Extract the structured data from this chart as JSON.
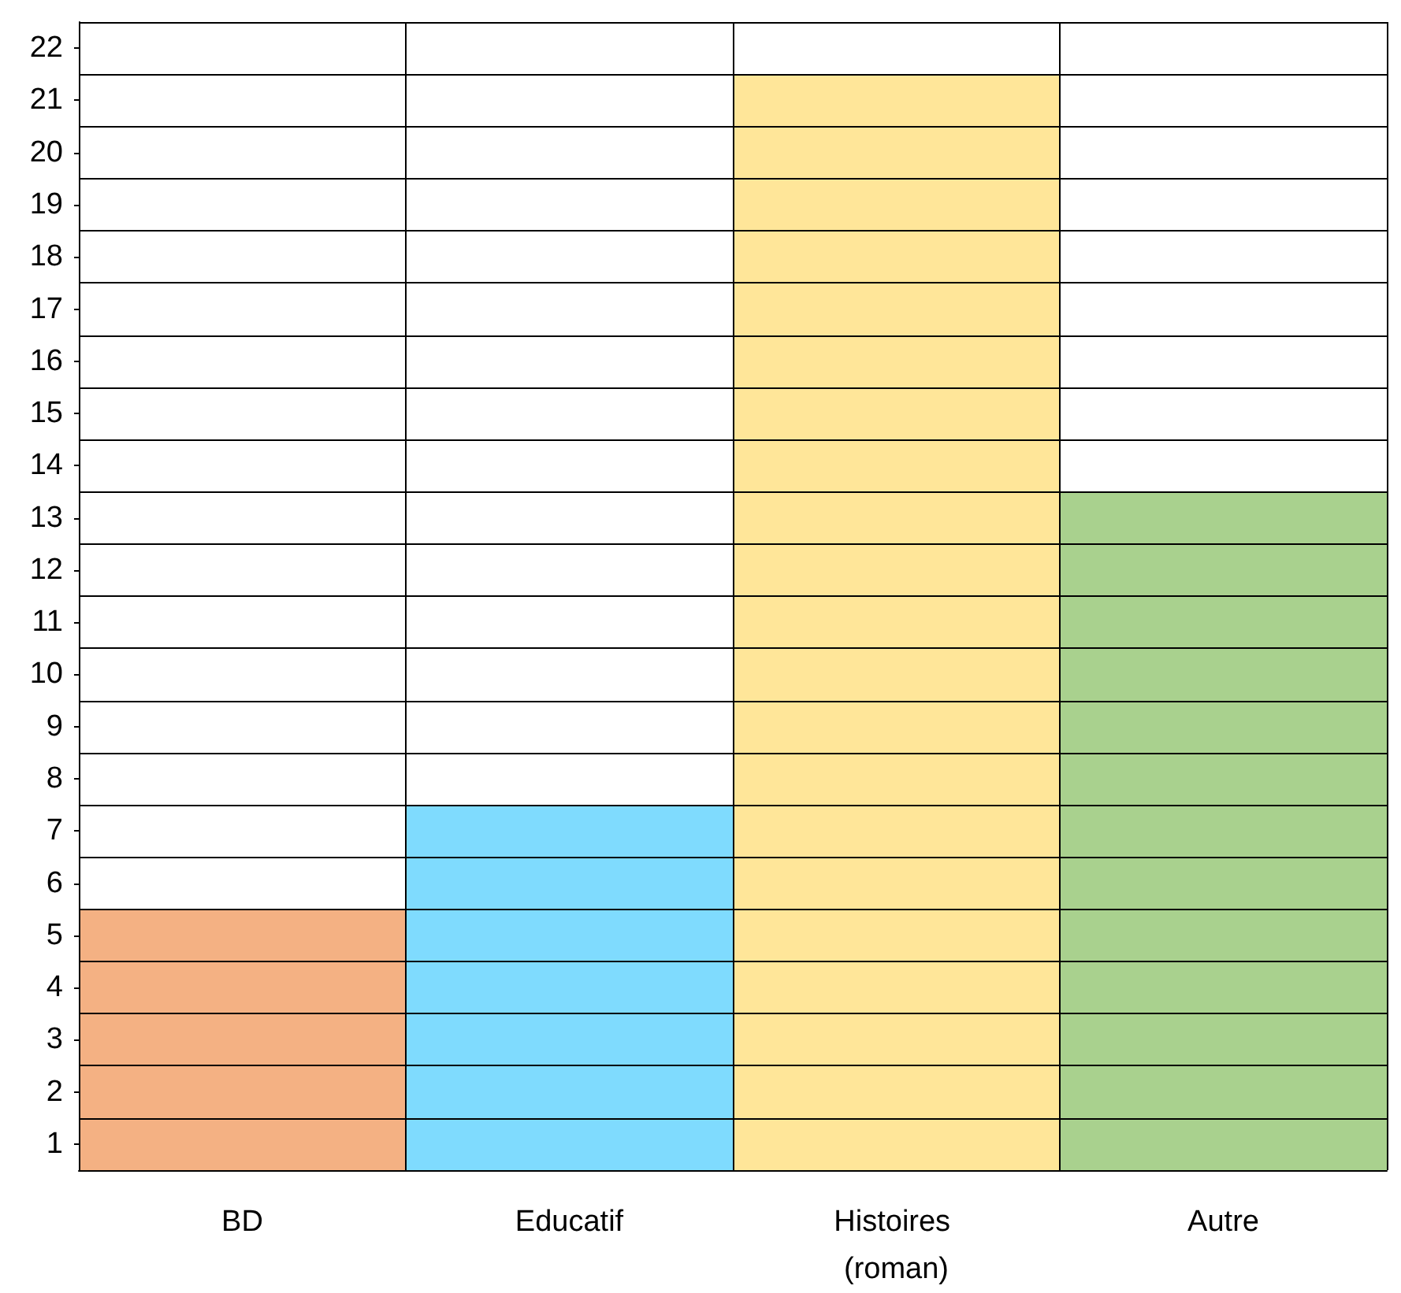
{
  "chart_data": {
    "type": "bar",
    "categories": [
      "BD",
      "Educatif",
      "Histoires (roman)",
      "Autre"
    ],
    "values": [
      5,
      7,
      21,
      13
    ],
    "colors": [
      "#f4b183",
      "#7fdbfe",
      "#ffe699",
      "#a9d18e"
    ],
    "ylim": [
      0,
      22
    ],
    "yticks": [
      {
        "value": 0.5,
        "label": "1"
      },
      {
        "value": 1.5,
        "label": "2"
      },
      {
        "value": 2.5,
        "label": "3"
      },
      {
        "value": 3.5,
        "label": "4"
      },
      {
        "value": 4.5,
        "label": "5"
      },
      {
        "value": 5.5,
        "label": "6"
      },
      {
        "value": 6.5,
        "label": "7"
      },
      {
        "value": 7.5,
        "label": "8"
      },
      {
        "value": 8.5,
        "label": "9"
      },
      {
        "value": 9.5,
        "label": "10"
      },
      {
        "value": 10.5,
        "label": "11"
      },
      {
        "value": 11.5,
        "label": "12"
      },
      {
        "value": 12.5,
        "label": "13"
      },
      {
        "value": 13.5,
        "label": "14"
      },
      {
        "value": 14.5,
        "label": "15"
      },
      {
        "value": 15.5,
        "label": "16"
      },
      {
        "value": 16.5,
        "label": "17"
      },
      {
        "value": 17.5,
        "label": "18"
      },
      {
        "value": 18.5,
        "label": "19"
      },
      {
        "value": 19.5,
        "label": "20"
      },
      {
        "value": 20.5,
        "label": "21"
      },
      {
        "value": 21.5,
        "label": "22"
      }
    ],
    "grid": true
  }
}
